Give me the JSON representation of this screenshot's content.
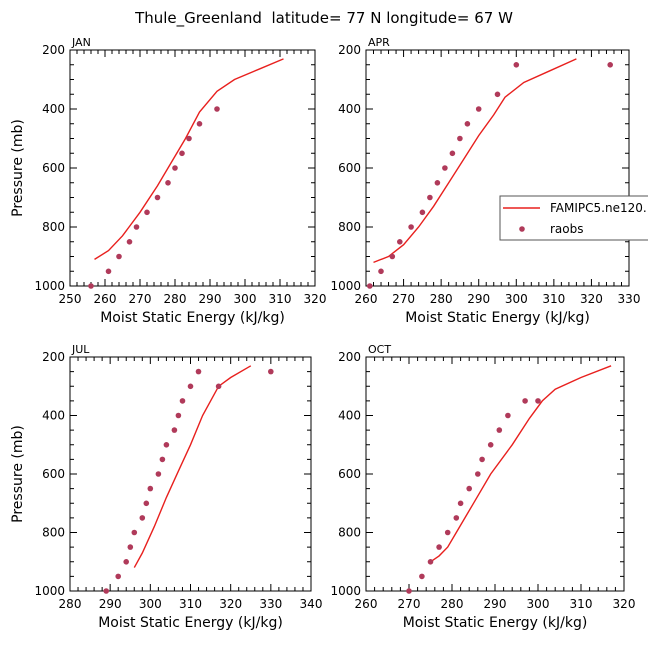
{
  "title": "Thule_Greenland  latitude= 77 N longitude= 67 W",
  "colors": {
    "model": "#e8201e",
    "obs": "#b03a5a"
  },
  "legend": {
    "model_label": "FAMIPC5.ne120.",
    "obs_label": "raobs",
    "placement": "right, overlapping APR panel"
  },
  "chart_data": [
    {
      "type": "line",
      "panel": "JAN",
      "xlabel": "Moist Static Energy (kJ/kg)",
      "ylabel": "Pressure (mb)",
      "xlim": [
        250,
        320
      ],
      "ylim": [
        1000,
        200
      ],
      "xticks": [
        250,
        260,
        270,
        280,
        290,
        300,
        310,
        320
      ],
      "yticks": [
        200,
        400,
        600,
        800,
        1000
      ],
      "series": [
        {
          "name": "FAMIPC5.ne120.",
          "style": "line",
          "x": [
            257,
            261,
            265,
            270,
            275,
            279,
            283,
            287,
            292,
            297,
            304,
            311
          ],
          "y": [
            910,
            880,
            830,
            750,
            660,
            580,
            500,
            410,
            340,
            300,
            265,
            230
          ]
        },
        {
          "name": "raobs",
          "style": "markers",
          "x": [
            256,
            261,
            264,
            267,
            269,
            272,
            275,
            278,
            280,
            282,
            284,
            287,
            292
          ],
          "y": [
            1000,
            950,
            900,
            850,
            800,
            750,
            700,
            650,
            600,
            550,
            500,
            450,
            400
          ]
        }
      ]
    },
    {
      "type": "line",
      "panel": "APR",
      "xlabel": "Moist Static Energy (kJ/kg)",
      "ylabel": "",
      "xlim": [
        260,
        330
      ],
      "ylim": [
        1000,
        200
      ],
      "xticks": [
        260,
        270,
        280,
        290,
        300,
        310,
        320,
        330
      ],
      "yticks": [
        200,
        400,
        600,
        800,
        1000
      ],
      "series": [
        {
          "name": "FAMIPC5.ne120.",
          "style": "line",
          "x": [
            262,
            266,
            270,
            274,
            278,
            282,
            286,
            290,
            294,
            297,
            302,
            309,
            316
          ],
          "y": [
            920,
            900,
            860,
            800,
            730,
            650,
            570,
            490,
            420,
            360,
            310,
            270,
            230
          ]
        },
        {
          "name": "raobs",
          "style": "markers",
          "x": [
            261,
            264,
            267,
            269,
            272,
            275,
            277,
            279,
            281,
            283,
            285,
            287,
            290,
            295,
            300,
            325
          ],
          "y": [
            1000,
            950,
            900,
            850,
            800,
            750,
            700,
            650,
            600,
            550,
            500,
            450,
            400,
            350,
            250,
            250
          ]
        }
      ]
    },
    {
      "type": "line",
      "panel": "JUL",
      "xlabel": "Moist Static Energy (kJ/kg)",
      "ylabel": "Pressure (mb)",
      "xlim": [
        280,
        340
      ],
      "ylim": [
        1000,
        200
      ],
      "xticks": [
        280,
        290,
        300,
        310,
        320,
        330,
        340
      ],
      "yticks": [
        200,
        400,
        600,
        800,
        1000
      ],
      "series": [
        {
          "name": "FAMIPC5.ne120.",
          "style": "line",
          "x": [
            296,
            298,
            301,
            304,
            307,
            310,
            313,
            317,
            320,
            325
          ],
          "y": [
            920,
            870,
            780,
            680,
            590,
            500,
            400,
            300,
            270,
            230
          ]
        },
        {
          "name": "raobs",
          "style": "markers",
          "x": [
            289,
            292,
            294,
            295,
            296,
            298,
            299,
            300,
            302,
            303,
            304,
            306,
            307,
            308,
            310,
            312,
            317,
            330
          ],
          "y": [
            1000,
            950,
            900,
            850,
            800,
            750,
            700,
            650,
            600,
            550,
            500,
            450,
            400,
            350,
            300,
            250,
            300,
            250
          ]
        }
      ]
    },
    {
      "type": "line",
      "panel": "OCT",
      "xlabel": "Moist Static Energy (kJ/kg)",
      "ylabel": "",
      "xlim": [
        260,
        320
      ],
      "ylim": [
        1000,
        200
      ],
      "xticks": [
        260,
        270,
        280,
        290,
        300,
        310,
        320
      ],
      "yticks": [
        200,
        400,
        600,
        800,
        1000
      ],
      "series": [
        {
          "name": "FAMIPC5.ne120.",
          "style": "line",
          "x": [
            275,
            277,
            279,
            281,
            285,
            289,
            294,
            298,
            301,
            304,
            310,
            317
          ],
          "y": [
            900,
            880,
            850,
            800,
            700,
            600,
            500,
            410,
            350,
            310,
            270,
            230
          ]
        },
        {
          "name": "raobs",
          "style": "markers",
          "x": [
            270,
            273,
            275,
            277,
            279,
            281,
            282,
            284,
            286,
            287,
            289,
            291,
            293,
            297,
            300
          ],
          "y": [
            1000,
            950,
            900,
            850,
            800,
            750,
            700,
            650,
            600,
            550,
            500,
            450,
            400,
            350,
            350
          ]
        }
      ]
    }
  ]
}
